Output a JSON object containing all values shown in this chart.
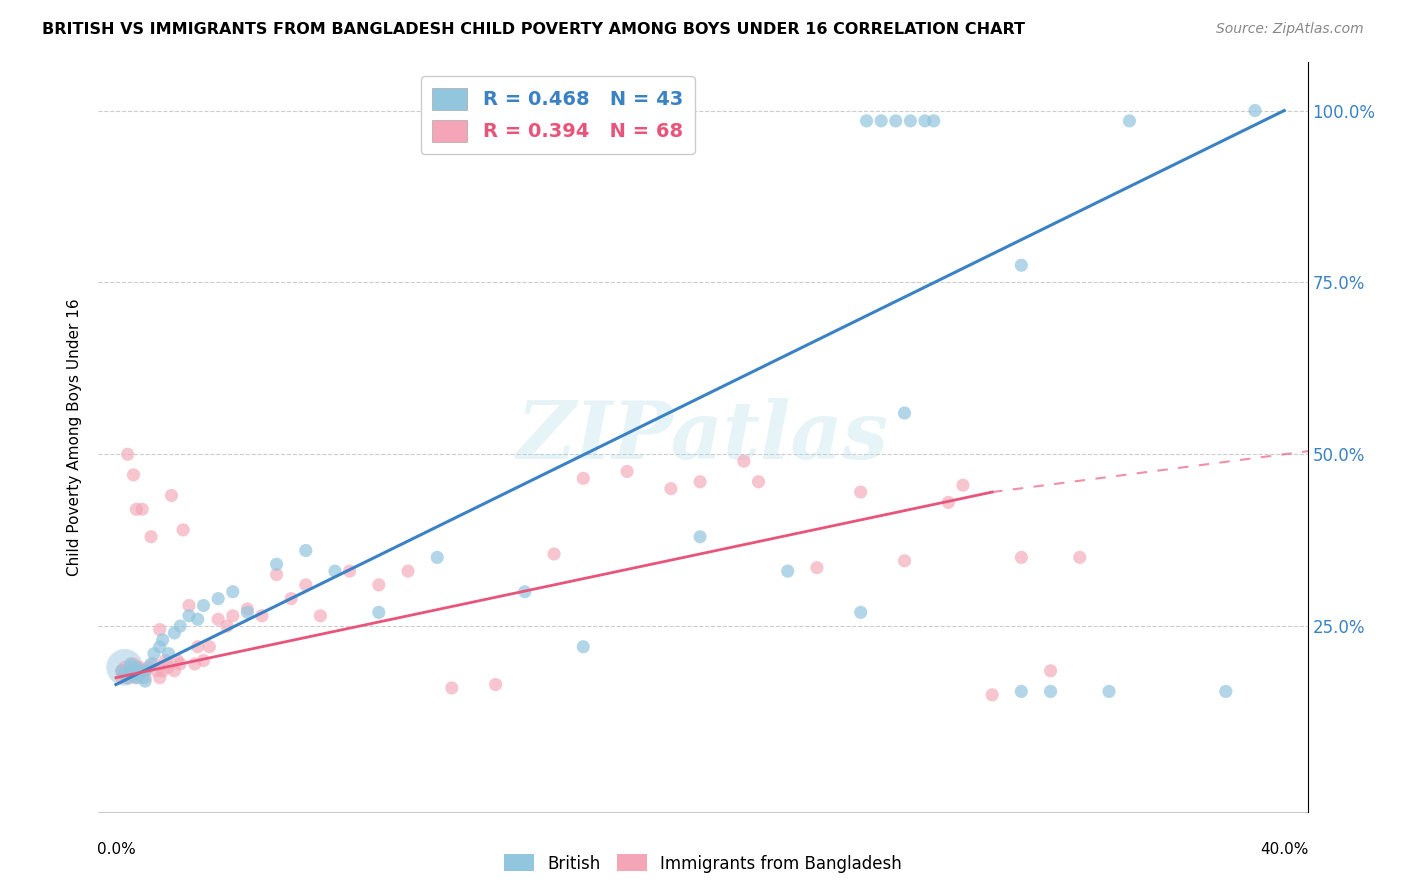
{
  "title": "BRITISH VS IMMIGRANTS FROM BANGLADESH CHILD POVERTY AMONG BOYS UNDER 16 CORRELATION CHART",
  "source": "Source: ZipAtlas.com",
  "ylabel": "Child Poverty Among Boys Under 16",
  "legend_label1": "British",
  "legend_label2": "Immigrants from Bangladesh",
  "r1": 0.468,
  "n1": 43,
  "r2": 0.394,
  "n2": 68,
  "color_blue": "#92c5de",
  "color_pink": "#f4a6b8",
  "color_blue_line": "#3b82c4",
  "color_pink_line": "#e8547a",
  "ytick_vals": [
    0.0,
    0.25,
    0.5,
    0.75,
    1.0
  ],
  "ytick_labels": [
    "",
    "25.0%",
    "50.0%",
    "75.0%",
    "100.0%"
  ],
  "blue_line": [
    0.0,
    0.165,
    0.4,
    1.0
  ],
  "pink_line_solid": [
    0.0,
    0.175,
    0.3,
    0.445
  ],
  "pink_line_dash": [
    0.3,
    0.445,
    0.5,
    0.555
  ],
  "blue_x": [
    0.002,
    0.003,
    0.004,
    0.005,
    0.005,
    0.006,
    0.006,
    0.007,
    0.007,
    0.008,
    0.008,
    0.009,
    0.01,
    0.01,
    0.012,
    0.013,
    0.015,
    0.016,
    0.018,
    0.02,
    0.022,
    0.025,
    0.028,
    0.03,
    0.035,
    0.04,
    0.045,
    0.055,
    0.065,
    0.075,
    0.09,
    0.11,
    0.14,
    0.16,
    0.2,
    0.23,
    0.255,
    0.27,
    0.31,
    0.32,
    0.34,
    0.38,
    0.39
  ],
  "blue_y": [
    0.185,
    0.18,
    0.175,
    0.19,
    0.195,
    0.18,
    0.185,
    0.175,
    0.19,
    0.18,
    0.185,
    0.175,
    0.185,
    0.17,
    0.195,
    0.21,
    0.22,
    0.23,
    0.21,
    0.24,
    0.25,
    0.265,
    0.26,
    0.28,
    0.29,
    0.3,
    0.27,
    0.34,
    0.36,
    0.33,
    0.27,
    0.35,
    0.3,
    0.22,
    0.38,
    0.33,
    0.27,
    0.56,
    0.155,
    0.155,
    0.155,
    0.155,
    1.0
  ],
  "blue_sizes": [
    80,
    80,
    80,
    80,
    80,
    80,
    80,
    80,
    80,
    80,
    80,
    80,
    80,
    80,
    80,
    80,
    80,
    80,
    80,
    80,
    80,
    80,
    80,
    80,
    80,
    80,
    80,
    80,
    80,
    80,
    80,
    80,
    80,
    80,
    80,
    80,
    80,
    80,
    80,
    80,
    80,
    80,
    80
  ],
  "blue_large_x": [
    0.003
  ],
  "blue_large_y": [
    0.19
  ],
  "blue_large_s": [
    700
  ],
  "pink_x": [
    0.002,
    0.002,
    0.003,
    0.003,
    0.004,
    0.004,
    0.005,
    0.005,
    0.005,
    0.006,
    0.006,
    0.007,
    0.007,
    0.008,
    0.008,
    0.009,
    0.009,
    0.01,
    0.01,
    0.011,
    0.012,
    0.013,
    0.014,
    0.015,
    0.015,
    0.016,
    0.017,
    0.018,
    0.019,
    0.02,
    0.021,
    0.022,
    0.023,
    0.025,
    0.027,
    0.028,
    0.03,
    0.032,
    0.035,
    0.038,
    0.04,
    0.045,
    0.05,
    0.055,
    0.06,
    0.065,
    0.07,
    0.08,
    0.09,
    0.1,
    0.115,
    0.13,
    0.15,
    0.16,
    0.175,
    0.19,
    0.2,
    0.215,
    0.22,
    0.24,
    0.255,
    0.27,
    0.285,
    0.29,
    0.3,
    0.31,
    0.32,
    0.33
  ],
  "pink_y": [
    0.175,
    0.185,
    0.18,
    0.19,
    0.175,
    0.5,
    0.18,
    0.185,
    0.19,
    0.195,
    0.47,
    0.175,
    0.42,
    0.18,
    0.19,
    0.185,
    0.42,
    0.175,
    0.185,
    0.19,
    0.38,
    0.195,
    0.185,
    0.175,
    0.245,
    0.185,
    0.2,
    0.19,
    0.44,
    0.185,
    0.2,
    0.195,
    0.39,
    0.28,
    0.195,
    0.22,
    0.2,
    0.22,
    0.26,
    0.25,
    0.265,
    0.275,
    0.265,
    0.325,
    0.29,
    0.31,
    0.265,
    0.33,
    0.31,
    0.33,
    0.16,
    0.165,
    0.355,
    0.465,
    0.475,
    0.45,
    0.46,
    0.49,
    0.46,
    0.335,
    0.445,
    0.345,
    0.43,
    0.455,
    0.15,
    0.35,
    0.185,
    0.35
  ],
  "top_blue_x": [
    0.257,
    0.262,
    0.267,
    0.272,
    0.277,
    0.28
  ],
  "top_blue_y": [
    0.985,
    0.985,
    0.985,
    0.985,
    0.985,
    0.985
  ],
  "far_right_blue_x": [
    0.347
  ],
  "far_right_blue_y": [
    0.985
  ],
  "high_blue_x": [
    0.31
  ],
  "high_blue_y": [
    0.775
  ]
}
